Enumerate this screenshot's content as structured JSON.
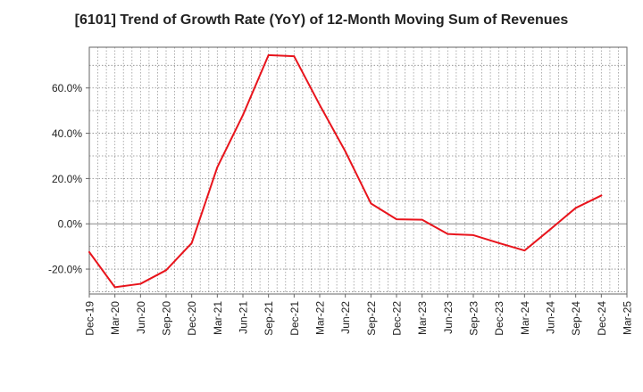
{
  "chart_data": {
    "type": "line",
    "title": "[6101]  Trend of Growth Rate (YoY) of 12-Month Moving Sum of Revenues",
    "xlabel": "",
    "ylabel": "",
    "x_ticks": [
      "Dec-19",
      "Mar-20",
      "Jun-20",
      "Sep-20",
      "Dec-20",
      "Mar-21",
      "Jun-21",
      "Sep-21",
      "Dec-21",
      "Mar-22",
      "Jun-22",
      "Sep-22",
      "Dec-22",
      "Mar-23",
      "Jun-23",
      "Sep-23",
      "Dec-23",
      "Mar-24",
      "Jun-24",
      "Sep-24",
      "Dec-24",
      "Mar-25"
    ],
    "y_ticks": [
      -20,
      0,
      20,
      40,
      60
    ],
    "y_tick_labels": [
      "-20.0%",
      "0.0%",
      "20.0%",
      "40.0%",
      "60.0%"
    ],
    "ylim": [
      -31,
      78
    ],
    "grid": true,
    "line_color": "#e8141c",
    "series": [
      {
        "values": [
          -12.5,
          -28.0,
          -26.5,
          -20.5,
          -8.5,
          25.0,
          48.0,
          74.5,
          74.0,
          52.5,
          32.0,
          9.0,
          2.0,
          1.8,
          -4.5,
          -5.0,
          -8.5,
          -11.8,
          -2.5,
          7.0,
          12.5
        ]
      }
    ]
  }
}
